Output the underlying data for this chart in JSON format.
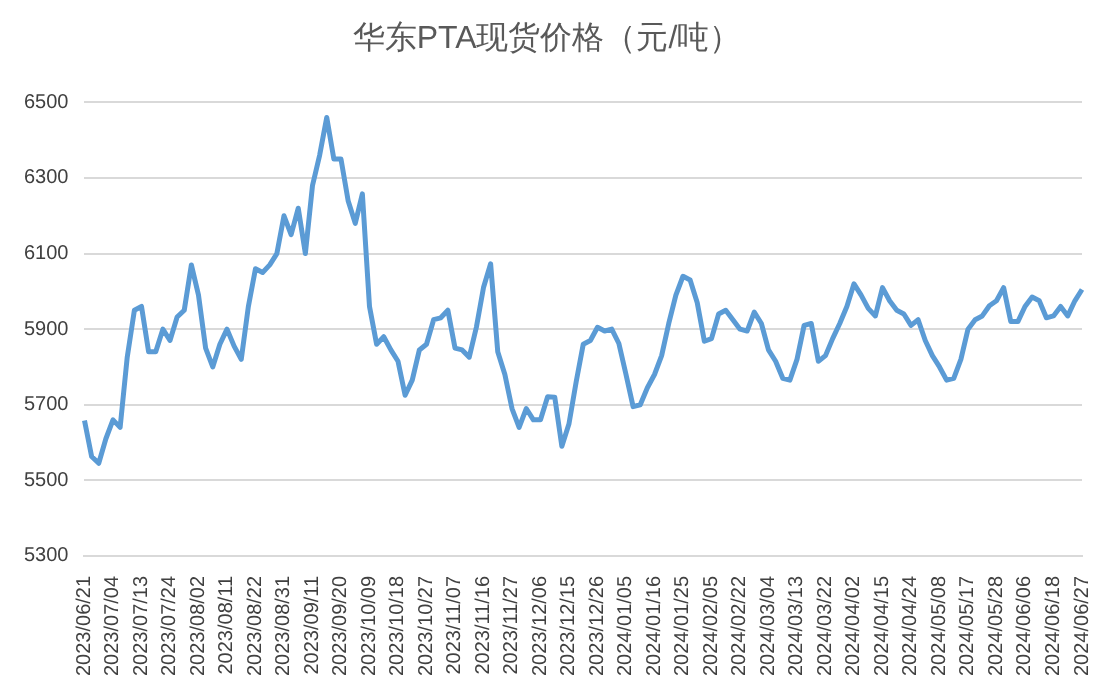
{
  "chart_data": {
    "type": "line",
    "title": "华东PTA现货价格（元/吨）",
    "categories": [
      "2023/06/21",
      null,
      null,
      null,
      "2023/07/04",
      null,
      null,
      null,
      "2023/07/13",
      null,
      null,
      null,
      "2023/07/24",
      null,
      null,
      null,
      "2023/08/02",
      null,
      null,
      null,
      "2023/08/11",
      null,
      null,
      null,
      "2023/08/22",
      null,
      null,
      null,
      "2023/08/31",
      null,
      null,
      null,
      "2023/09/11",
      null,
      null,
      null,
      "2023/09/20",
      null,
      null,
      null,
      "2023/10/09",
      null,
      null,
      null,
      "2023/10/18",
      null,
      null,
      null,
      "2023/10/27",
      null,
      null,
      null,
      "2023/11/07",
      null,
      null,
      null,
      "2023/11/16",
      null,
      null,
      null,
      "2023/11/27",
      null,
      null,
      null,
      "2023/12/06",
      null,
      null,
      null,
      "2023/12/15",
      null,
      null,
      null,
      "2023/12/26",
      null,
      null,
      null,
      "2024/01/05",
      null,
      null,
      null,
      "2024/01/16",
      null,
      null,
      null,
      "2024/01/25",
      null,
      null,
      null,
      "2024/02/05",
      null,
      null,
      null,
      "2024/02/22",
      null,
      null,
      null,
      "2024/03/04",
      null,
      null,
      null,
      "2024/03/13",
      null,
      null,
      null,
      "2024/03/22",
      null,
      null,
      null,
      "2024/04/02",
      null,
      null,
      null,
      "2024/04/15",
      null,
      null,
      null,
      "2024/04/24",
      null,
      null,
      null,
      "2024/05/08",
      null,
      null,
      null,
      "2024/05/17",
      null,
      null,
      null,
      "2024/05/28",
      null,
      null,
      null,
      "2024/06/06",
      null,
      null,
      null,
      "2024/06/18",
      null,
      null,
      null,
      "2024/06/27"
    ],
    "series": [
      {
        "color": "#5b9bd5",
        "values": [
          5658,
          5563,
          5545,
          5610,
          5660,
          5640,
          5826,
          5950,
          5960,
          5840,
          5840,
          5900,
          5870,
          5932,
          5950,
          6070,
          5990,
          5850,
          5800,
          5860,
          5900,
          5855,
          5820,
          5960,
          6060,
          6050,
          6070,
          6100,
          6200,
          6150,
          6220,
          6100,
          6280,
          6360,
          6460,
          6350,
          6350,
          6240,
          6180,
          6258,
          5960,
          5860,
          5880,
          5845,
          5815,
          5725,
          5765,
          5845,
          5860,
          5925,
          5930,
          5950,
          5850,
          5845,
          5826,
          5905,
          6010,
          6073,
          5840,
          5780,
          5690,
          5640,
          5690,
          5660,
          5660,
          5721,
          5720,
          5590,
          5650,
          5760,
          5860,
          5870,
          5905,
          5895,
          5900,
          5862,
          5780,
          5695,
          5700,
          5745,
          5780,
          5830,
          5915,
          5990,
          6040,
          6030,
          5970,
          5868,
          5875,
          5940,
          5950,
          5925,
          5900,
          5895,
          5945,
          5915,
          5845,
          5815,
          5770,
          5765,
          5820,
          5910,
          5915,
          5815,
          5830,
          5875,
          5915,
          5960,
          6020,
          5990,
          5955,
          5935,
          6010,
          5975,
          5950,
          5940,
          5910,
          5925,
          5870,
          5830,
          5800,
          5765,
          5770,
          5820,
          5900,
          5925,
          5935,
          5962,
          5975,
          6010,
          5920,
          5920,
          5960,
          5985,
          5975,
          5930,
          5935,
          5960,
          5935,
          5975,
          6005
        ]
      }
    ],
    "ylim": [
      5300,
      6500
    ],
    "yticks": [
      5300,
      5500,
      5700,
      5900,
      6100,
      6300,
      6500
    ],
    "grid": "y",
    "legend": false,
    "marker": "none",
    "line_style": "solid"
  }
}
